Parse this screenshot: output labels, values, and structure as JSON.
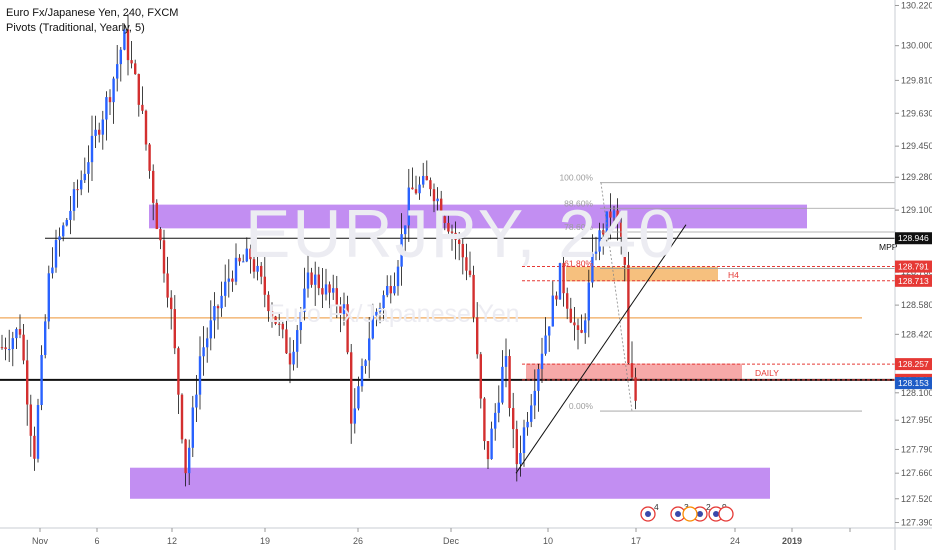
{
  "chart_data": {
    "type": "candlestick",
    "title": "Euro Fx/Japanese Yen, 240, FXCM",
    "indicator": "Pivots (Traditional, Yearly, 5)",
    "watermark": {
      "symbol": "EURJPY, 240",
      "description": "Euro Fx/Japanese Yen"
    },
    "x_ticks": [
      "Nov",
      "6",
      "12",
      "19",
      "26",
      "Dec",
      "10",
      "17",
      "24",
      "2019"
    ],
    "y_ticks": [
      127.39,
      127.52,
      127.66,
      127.79,
      127.95,
      128.1,
      128.26,
      128.42,
      128.58,
      128.76,
      128.93,
      129.1,
      129.28,
      129.45,
      129.63,
      129.81,
      130.0,
      130.22
    ],
    "ylim": [
      127.36,
      130.25
    ],
    "price_labels": [
      {
        "value": 128.946,
        "text": "128.946",
        "color": "#111111",
        "name": "MPP"
      },
      {
        "value": 128.791,
        "text": "128.791",
        "color": "#e53935"
      },
      {
        "value": 128.713,
        "text": "128.713",
        "color": "#e53935"
      },
      {
        "value": 128.257,
        "text": "128.257",
        "color": "#e53935"
      },
      {
        "value": 128.171,
        "text": "128.171",
        "color": "#e53935"
      },
      {
        "value": 128.153,
        "text": "128.153",
        "color": "#1e5bc6"
      }
    ],
    "zones": [
      {
        "from": 129.0,
        "to": 129.13,
        "color": "#b77af0"
      },
      {
        "from": 127.52,
        "to": 127.69,
        "color": "#b77af0"
      },
      {
        "from": 128.71,
        "to": 128.79,
        "color": "#f5b567",
        "label": "H4"
      },
      {
        "from": 128.17,
        "to": 128.26,
        "color": "#f59a9a",
        "label": "DAILY"
      }
    ],
    "fibonacci": [
      {
        "level": "100.00%",
        "price": 129.25
      },
      {
        "level": "88.60%",
        "price": 129.11
      },
      {
        "level": "78.60%",
        "price": 128.98
      },
      {
        "level": "61.80%",
        "price": 128.78
      },
      {
        "level": "0.00%",
        "price": 128.0
      }
    ],
    "colors": {
      "up": "#2962ff",
      "down": "#d32f2f",
      "zone": "#b77af0",
      "pivot_line": "#f0a95b"
    }
  }
}
